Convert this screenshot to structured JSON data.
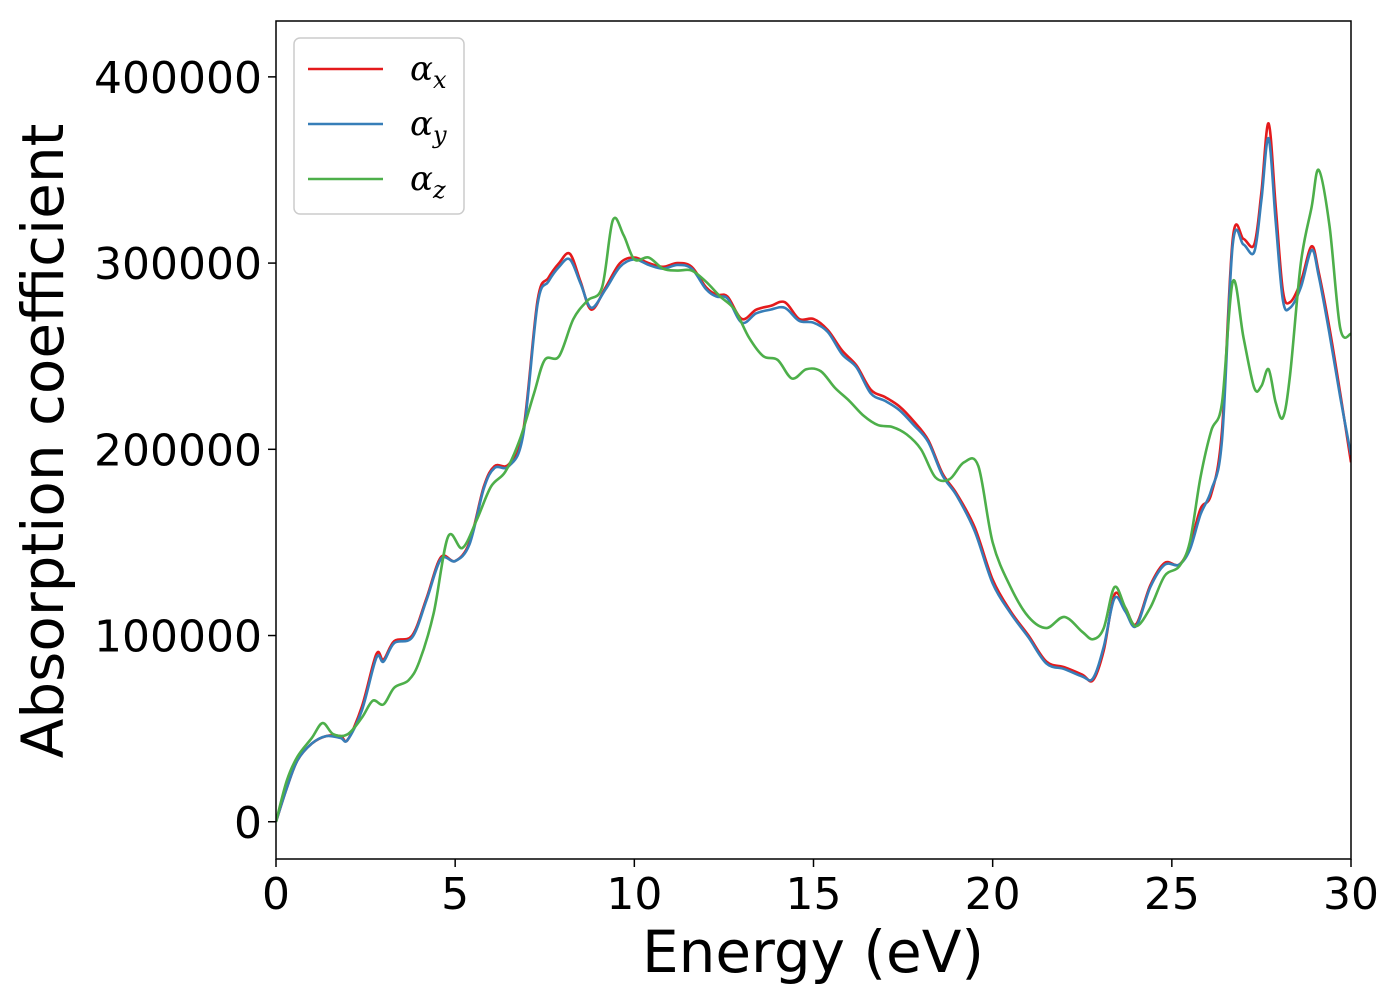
{
  "chart_data": {
    "type": "line",
    "xlabel": "Energy (eV)",
    "ylabel": "Absorption coefficient",
    "xlim": [
      0,
      30
    ],
    "ylim": [
      -20000,
      430000
    ],
    "xticks": [
      0,
      5,
      10,
      15,
      20,
      25,
      30
    ],
    "yticks": [
      0,
      100000,
      200000,
      300000,
      400000
    ],
    "xtick_labels": [
      "0",
      "5",
      "10",
      "15",
      "20",
      "25",
      "30"
    ],
    "ytick_labels": [
      "0",
      "100000",
      "200000",
      "300000",
      "400000"
    ],
    "grid": false,
    "legend_position": "top-left",
    "series": [
      {
        "name": "αx",
        "symbol": "α",
        "subscript": "x",
        "color": "#e41a1c",
        "x": [
          0,
          0.3,
          0.6,
          1.0,
          1.4,
          1.8,
          2.0,
          2.4,
          2.8,
          3.0,
          3.3,
          3.8,
          4.2,
          4.6,
          5.0,
          5.4,
          5.8,
          6.1,
          6.5,
          6.9,
          7.3,
          7.6,
          7.9,
          8.2,
          8.5,
          8.8,
          9.2,
          9.6,
          10.0,
          10.4,
          10.8,
          11.2,
          11.6,
          12.0,
          12.3,
          12.6,
          13.0,
          13.4,
          13.8,
          14.2,
          14.6,
          15.0,
          15.4,
          15.8,
          16.2,
          16.6,
          17.0,
          17.4,
          17.8,
          18.2,
          18.6,
          19.0,
          19.5,
          20.0,
          20.5,
          21.0,
          21.5,
          22.0,
          22.5,
          22.8,
          23.1,
          23.4,
          23.7,
          24.0,
          24.4,
          24.8,
          25.2,
          25.5,
          25.8,
          26.1,
          26.4,
          26.7,
          27.0,
          27.3,
          27.5,
          27.7,
          27.9,
          28.1,
          28.3,
          28.6,
          28.9,
          29.1,
          29.4,
          29.7,
          30.0
        ],
        "y": [
          0,
          18000,
          33000,
          42000,
          46000,
          46000,
          44000,
          62000,
          90000,
          87000,
          97000,
          100000,
          120000,
          142000,
          140000,
          150000,
          180000,
          191000,
          192000,
          210000,
          280000,
          292000,
          300000,
          305000,
          290000,
          275000,
          287000,
          300000,
          303000,
          300000,
          298000,
          300000,
          298000,
          287000,
          283000,
          282000,
          270000,
          275000,
          277000,
          279000,
          270000,
          270000,
          264000,
          253000,
          245000,
          232000,
          228000,
          223000,
          215000,
          205000,
          187000,
          176000,
          158000,
          130000,
          113000,
          100000,
          86000,
          83000,
          79000,
          76000,
          92000,
          122000,
          115000,
          106000,
          127000,
          139000,
          138000,
          148000,
          168000,
          176000,
          210000,
          313000,
          313000,
          310000,
          338000,
          375000,
          330000,
          285000,
          279000,
          290000,
          309000,
          295000,
          265000,
          230000,
          193000
        ]
      },
      {
        "name": "αy",
        "symbol": "α",
        "subscript": "y",
        "color": "#377eb8",
        "x": [
          0,
          0.3,
          0.6,
          1.0,
          1.4,
          1.8,
          2.0,
          2.4,
          2.8,
          3.0,
          3.3,
          3.8,
          4.2,
          4.6,
          5.0,
          5.4,
          5.8,
          6.1,
          6.5,
          6.9,
          7.3,
          7.6,
          7.9,
          8.2,
          8.5,
          8.8,
          9.2,
          9.6,
          10.0,
          10.4,
          10.8,
          11.2,
          11.6,
          12.0,
          12.3,
          12.6,
          13.0,
          13.4,
          13.8,
          14.2,
          14.6,
          15.0,
          15.4,
          15.8,
          16.2,
          16.6,
          17.0,
          17.4,
          17.8,
          18.2,
          18.6,
          19.0,
          19.5,
          20.0,
          20.5,
          21.0,
          21.5,
          22.0,
          22.5,
          22.8,
          23.1,
          23.4,
          23.7,
          24.0,
          24.4,
          24.8,
          25.2,
          25.5,
          25.8,
          26.1,
          26.4,
          26.7,
          27.0,
          27.3,
          27.5,
          27.7,
          27.9,
          28.1,
          28.3,
          28.6,
          28.9,
          29.1,
          29.4,
          29.7,
          30.0
        ],
        "y": [
          0,
          18000,
          33000,
          42000,
          46000,
          45000,
          44000,
          60000,
          88000,
          86000,
          96000,
          99000,
          119000,
          141000,
          140000,
          149000,
          179000,
          190000,
          191000,
          208000,
          278000,
          290000,
          298000,
          302000,
          289000,
          276000,
          286000,
          298000,
          302000,
          299000,
          297000,
          299000,
          297000,
          286000,
          282000,
          281000,
          268000,
          273000,
          275000,
          276000,
          269000,
          268000,
          263000,
          251000,
          244000,
          230000,
          226000,
          221000,
          213000,
          204000,
          186000,
          175000,
          156000,
          128000,
          112000,
          99000,
          85000,
          82000,
          78000,
          77000,
          94000,
          120000,
          113000,
          105000,
          126000,
          138000,
          138000,
          146000,
          165000,
          178000,
          205000,
          310000,
          310000,
          306000,
          334000,
          367000,
          322000,
          280000,
          276000,
          287000,
          307000,
          293000,
          262000,
          228000,
          197000
        ]
      },
      {
        "name": "αz",
        "symbol": "α",
        "subscript": "z",
        "color": "#4daf4a",
        "x": [
          0,
          0.3,
          0.6,
          1.0,
          1.3,
          1.6,
          2.0,
          2.4,
          2.7,
          3.0,
          3.3,
          3.7,
          4.0,
          4.4,
          4.8,
          5.2,
          5.6,
          6.0,
          6.4,
          6.8,
          7.2,
          7.5,
          7.9,
          8.3,
          8.7,
          9.1,
          9.4,
          9.7,
          10.0,
          10.4,
          10.8,
          11.2,
          11.6,
          12.0,
          12.4,
          12.8,
          13.2,
          13.6,
          14.0,
          14.4,
          14.8,
          15.2,
          15.6,
          16.0,
          16.4,
          16.8,
          17.2,
          17.6,
          18.0,
          18.4,
          18.8,
          19.2,
          19.6,
          20.0,
          20.5,
          21.0,
          21.5,
          22.0,
          22.5,
          22.8,
          23.1,
          23.4,
          23.7,
          24.0,
          24.4,
          24.8,
          25.2,
          25.5,
          25.8,
          26.1,
          26.4,
          26.7,
          27.0,
          27.3,
          27.5,
          27.7,
          27.9,
          28.1,
          28.3,
          28.6,
          28.9,
          29.1,
          29.4,
          29.7,
          30.0
        ],
        "y": [
          0,
          22000,
          35000,
          45000,
          53000,
          47000,
          47000,
          56000,
          65000,
          63000,
          72000,
          76000,
          86000,
          112000,
          153000,
          147000,
          162000,
          180000,
          188000,
          205000,
          230000,
          248000,
          250000,
          270000,
          280000,
          287000,
          323000,
          315000,
          302000,
          303000,
          297000,
          296000,
          296000,
          290000,
          282000,
          275000,
          260000,
          250000,
          248000,
          238000,
          243000,
          242000,
          233000,
          226000,
          218000,
          213000,
          212000,
          208000,
          200000,
          185000,
          184000,
          193000,
          191000,
          150000,
          126000,
          110000,
          104000,
          110000,
          102000,
          98000,
          104000,
          126000,
          115000,
          105000,
          115000,
          132000,
          137000,
          150000,
          185000,
          210000,
          225000,
          290000,
          260000,
          233000,
          234000,
          243000,
          225000,
          217000,
          240000,
          300000,
          330000,
          350000,
          320000,
          265000,
          262000
        ]
      }
    ]
  }
}
